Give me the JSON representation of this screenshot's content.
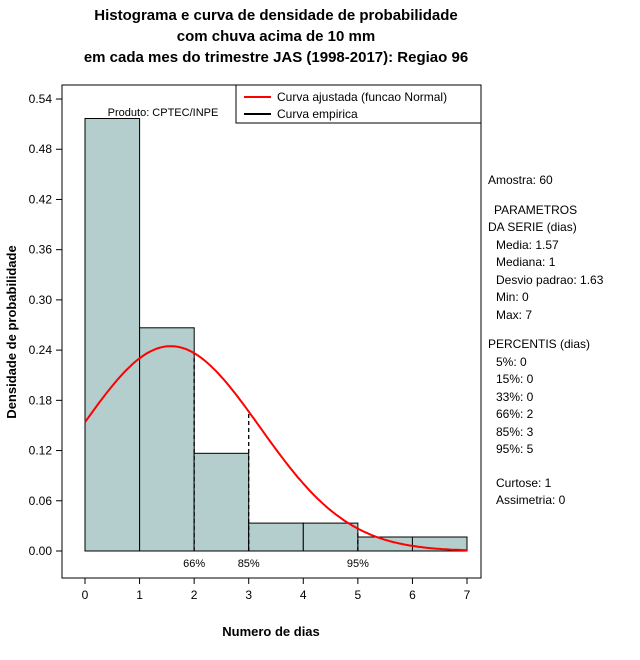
{
  "title": {
    "line1": "Histograma e curva de densidade de probabilidade",
    "line2": "com chuva acima de 10 mm",
    "line3": "em cada mes do trimestre JAS (1998-2017): Regiao 96"
  },
  "chart_data": {
    "type": "bar",
    "title": "Histograma e curva de densidade de probabilidade com chuva acima de 10 mm em cada mes do trimestre JAS (1998-2017): Regiao 96",
    "xlabel": "Numero de dias",
    "ylabel": "Densidade de probabilidade",
    "x_ticks": [
      0,
      1,
      2,
      3,
      4,
      5,
      6,
      7
    ],
    "y_tick_labels": [
      "0.00",
      "0.06",
      "0.12",
      "0.18",
      "0.24",
      "0.30",
      "0.36",
      "0.42",
      "0.48",
      "0.54"
    ],
    "xlim": [
      0,
      7
    ],
    "ylim": [
      0,
      0.54
    ],
    "grid": false,
    "legend_position": "top-right",
    "histogram": {
      "bin_edges": [
        0,
        1,
        2,
        3,
        4,
        5,
        6,
        7
      ],
      "densities": [
        0.5167,
        0.2667,
        0.1167,
        0.0333,
        0.0333,
        0.0167,
        0.0167
      ],
      "fill_color": "#b4cdcd",
      "border_color": "#000000"
    },
    "fitted_curve": {
      "distribution": "normal",
      "mean": 1.57,
      "sd": 1.63,
      "color": "#ff0000"
    },
    "percentile_lines": [
      {
        "x": 2,
        "label": "66%"
      },
      {
        "x": 3,
        "label": "85%"
      },
      {
        "x": 5,
        "label": "95%"
      }
    ],
    "annotation": "Produto: CPTEC/INPE",
    "legend": [
      {
        "label": "Curva ajustada (funcao Normal)",
        "color": "#ff0000"
      },
      {
        "label": "Curva empirica",
        "color": "#000000"
      }
    ]
  },
  "stats_panel": {
    "amostra": "Amostra: 60",
    "parametros_header_line1": "PARAMETROS",
    "parametros_header_line2": "DA SERIE (dias)",
    "parametros": [
      "Media: 1.57",
      "Mediana: 1",
      "Desvio padrao: 1.63",
      "Min: 0",
      "Max: 7"
    ],
    "percentis_header": "PERCENTIS (dias)",
    "percentis": [
      "5%: 0",
      "15%: 0",
      "33%: 0",
      "66%: 2",
      "85%: 3",
      "95%: 5"
    ],
    "curtose": "Curtose: 1",
    "assimetria": "Assimetria: 0"
  }
}
